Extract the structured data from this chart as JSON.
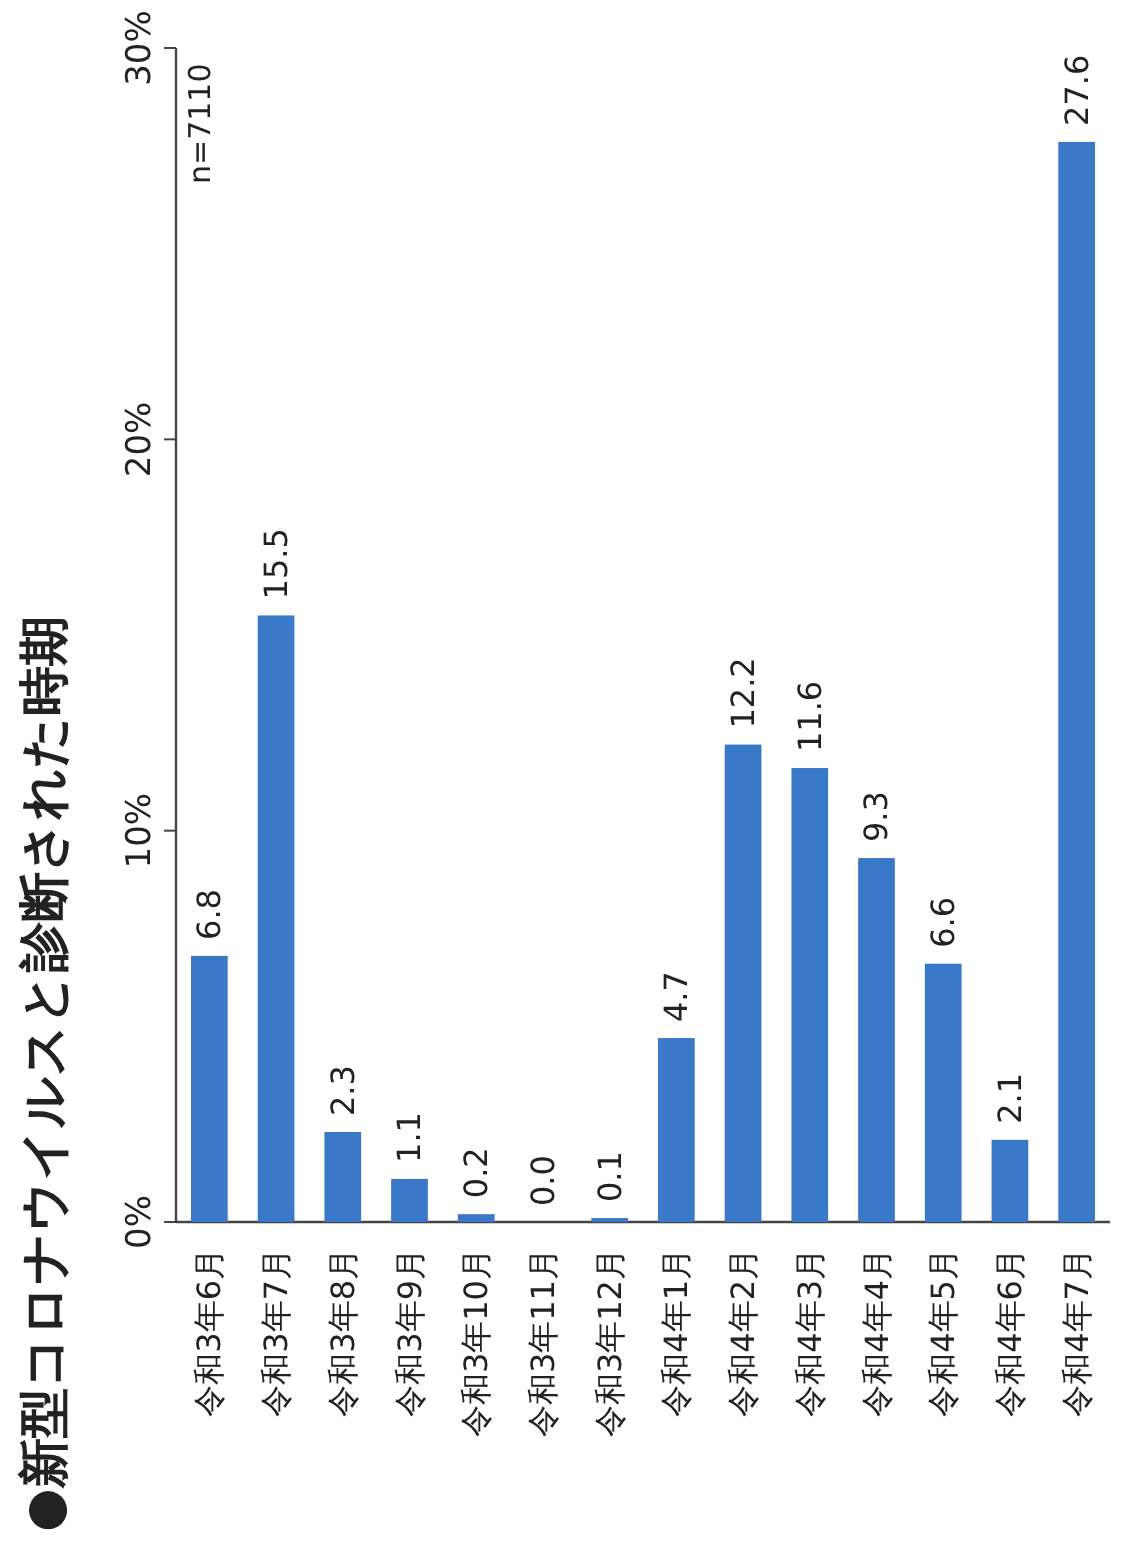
{
  "chart_data": {
    "type": "bar",
    "title": "●新型コロナウイルスと診断された時期",
    "annotations": [
      "n=7110"
    ],
    "categories": [
      "令和3年6月",
      "令和3年7月",
      "令和3年8月",
      "令和3年9月",
      "令和3年10月",
      "令和3年11月",
      "令和3年12月",
      "令和4年1月",
      "令和4年2月",
      "令和4年3月",
      "令和4年4月",
      "令和4年5月",
      "令和4年6月",
      "令和4年7月"
    ],
    "values": [
      6.8,
      15.5,
      2.3,
      1.1,
      0.2,
      0.0,
      0.1,
      4.7,
      12.2,
      11.6,
      9.3,
      6.6,
      2.1,
      27.6
    ],
    "value_labels": [
      "6.8",
      "15.5",
      "2.3",
      "1.1",
      "0.2",
      "0.0",
      "0.1",
      "4.7",
      "12.2",
      "11.6",
      "9.3",
      "6.6",
      "2.1",
      "27.6"
    ],
    "color": "#3a78c8",
    "ylim": [
      0,
      30
    ],
    "yticks": [
      {
        "value": 0,
        "label": "0%"
      },
      {
        "value": 10,
        "label": "10%"
      },
      {
        "value": 20,
        "label": "20%"
      },
      {
        "value": 30,
        "label": "30%"
      }
    ],
    "grid": false
  }
}
